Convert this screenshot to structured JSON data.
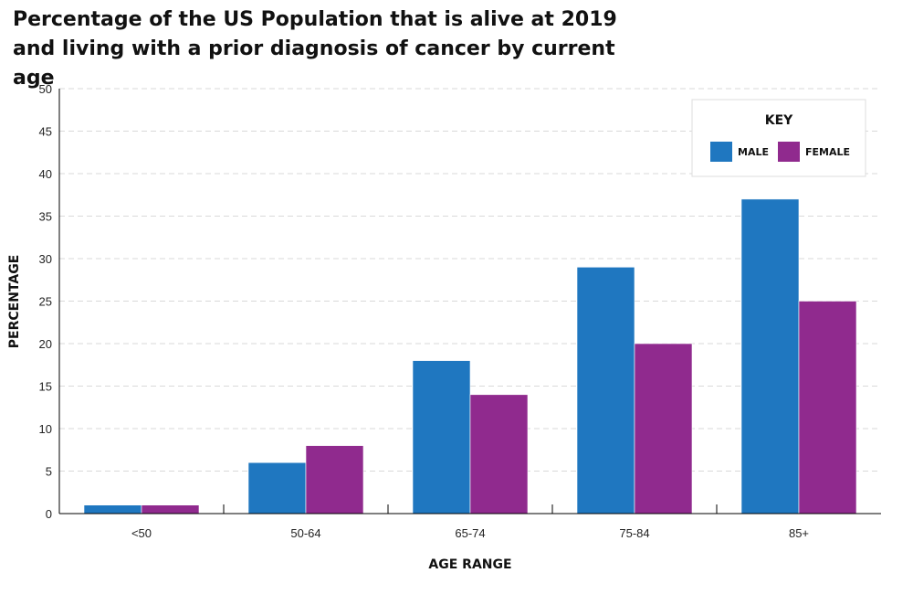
{
  "title": "Percentage of the US Population that is alive at 2019 and living with a prior diagnosis of cancer by current age",
  "chart_data": {
    "type": "bar",
    "title": "Percentage of the US Population that is alive at 2019 and living with a prior diagnosis of cancer by current age",
    "xlabel": "AGE RANGE",
    "ylabel": "PERCENTAGE",
    "categories": [
      "<50",
      "50-64",
      "65-74",
      "75-84",
      "85+"
    ],
    "series": [
      {
        "name": "MALE",
        "color": "#1f77c0",
        "values": [
          1,
          6,
          18,
          29,
          37
        ]
      },
      {
        "name": "FEMALE",
        "color": "#902a8e",
        "values": [
          1,
          8,
          14,
          20,
          25
        ]
      }
    ],
    "ylim": [
      0,
      50
    ],
    "yticks": [
      0,
      5,
      10,
      15,
      20,
      25,
      30,
      35,
      40,
      45,
      50
    ],
    "grid": true,
    "legend": {
      "title": "KEY",
      "placement": "top-right"
    }
  }
}
